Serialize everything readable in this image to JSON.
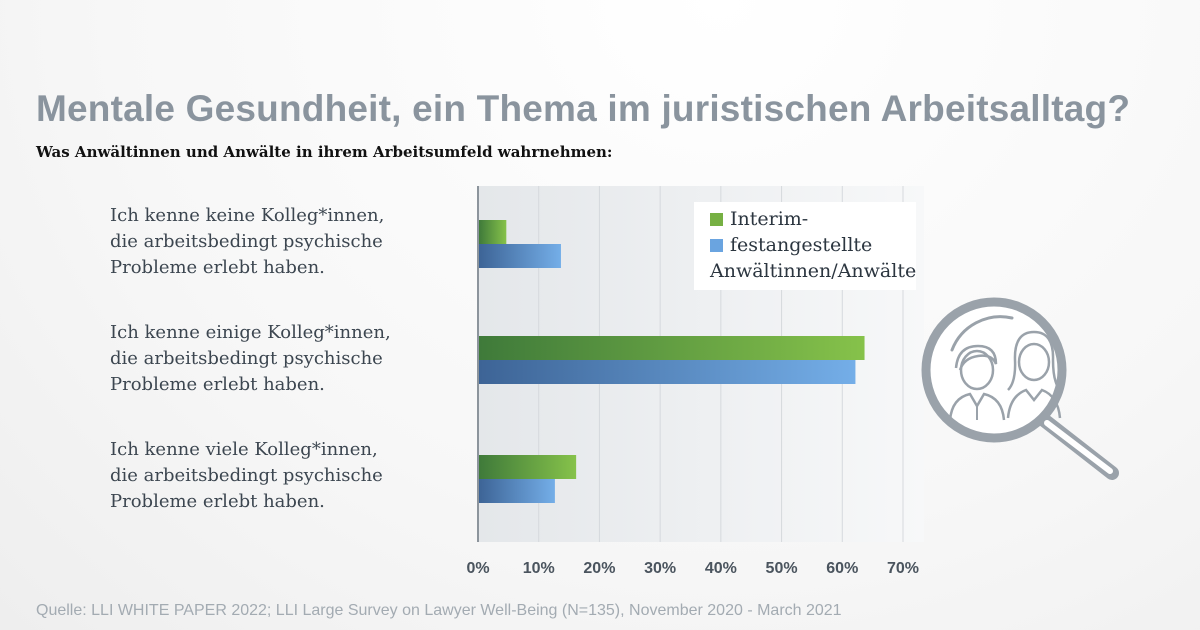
{
  "title": "Mentale Gesundheit, ein Thema im juristischen Arbeitsalltag?",
  "subtitle": "Was Anwältinnen und Anwälte in ihrem Arbeitsumfeld wahrnehmen:",
  "categories": [
    [
      "Ich kenne keine Kolleg*innen,",
      "die arbeitsbedingt psychische",
      "Probleme erlebt haben."
    ],
    [
      "Ich kenne einige Kolleg*innen,",
      "die arbeitsbedingt psychische",
      "Probleme erlebt haben."
    ],
    [
      "Ich kenne viele Kolleg*innen,",
      "die arbeitsbedingt psychische",
      "Probleme erlebt haben."
    ]
  ],
  "legend": {
    "series0": "Interim-",
    "series1_line1": "festangestellte",
    "series1_line2": "Anwältinnen/Anwälte"
  },
  "source": "Quelle: LLI WHITE PAPER 2022; LLI Large Survey on  Lawyer Well-Being (N=135), November 2020 - March 2021",
  "colors": {
    "series0": "#76b043",
    "series1": "#6aa4e0",
    "title": "#8a949e",
    "icon": "#9aa2aa"
  },
  "icon": "magnifier-people-icon",
  "chart_data": {
    "type": "bar",
    "orientation": "horizontal",
    "categories": [
      "Ich kenne keine Kolleg*innen, die arbeitsbedingt psychische Probleme erlebt haben.",
      "Ich kenne einige Kolleg*innen, die arbeitsbedingt psychische Probleme erlebt haben.",
      "Ich kenne viele Kolleg*innen, die arbeitsbedingt psychische Probleme erlebt haben."
    ],
    "series": [
      {
        "name": "Interim-",
        "values": [
          4.5,
          63.5,
          16
        ]
      },
      {
        "name": "festangestellte Anwältinnen/Anwälte",
        "values": [
          13.5,
          62,
          12.5
        ]
      }
    ],
    "xlim": [
      0,
      70
    ],
    "xticks": [
      "0%",
      "10%",
      "20%",
      "30%",
      "40%",
      "50%",
      "60%",
      "70%"
    ],
    "grid": true,
    "legend_position": "top-right"
  }
}
